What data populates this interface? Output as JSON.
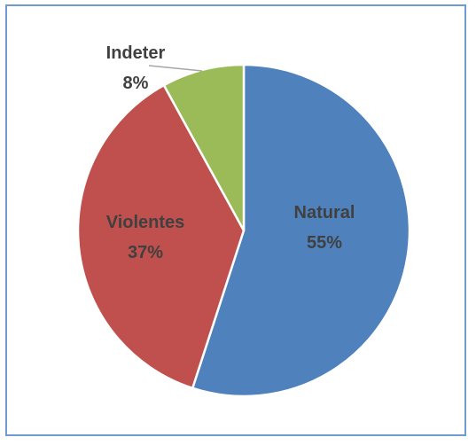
{
  "chart_data": {
    "type": "pie",
    "title": "",
    "slices": [
      {
        "label": "Natural",
        "value": 55,
        "percent_label": "55%",
        "color": "#4f81bd"
      },
      {
        "label": "Violentes",
        "value": 37,
        "percent_label": "37%",
        "color": "#c0504d"
      },
      {
        "label": "Indeter",
        "value": 8,
        "percent_label": "8%",
        "color": "#9bbb59"
      }
    ],
    "label_text_colors": [
      "#404040",
      "#404040",
      "#404040"
    ],
    "legend": "none"
  }
}
